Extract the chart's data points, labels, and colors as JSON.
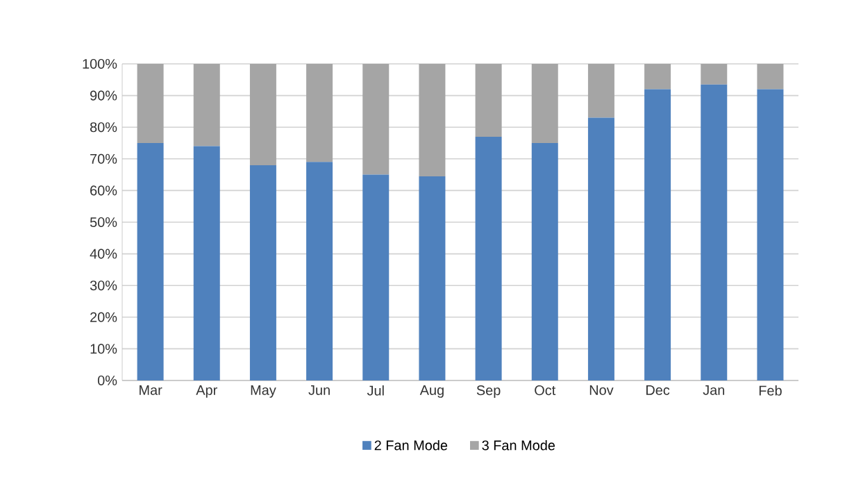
{
  "chart_data": {
    "type": "bar",
    "stacked": true,
    "categories": [
      "Mar",
      "Apr",
      "May",
      "Jun",
      "Jul",
      "Aug",
      "Sep",
      "Oct",
      "Nov",
      "Dec",
      "Jan",
      "Feb"
    ],
    "series": [
      {
        "name": "2 Fan Mode",
        "color": "#4f81bd",
        "values": [
          75,
          74,
          68,
          69,
          65,
          64.5,
          77,
          75,
          83,
          92,
          93.5,
          92
        ]
      },
      {
        "name": "3 Fan Mode",
        "color": "#a5a5a5",
        "values": [
          25,
          26,
          32,
          31,
          35,
          35.5,
          23,
          25,
          17,
          8,
          6.5,
          8
        ]
      }
    ],
    "ylim": [
      0,
      100
    ],
    "yticks": [
      {
        "value": 0,
        "label": "0%"
      },
      {
        "value": 10,
        "label": "10%"
      },
      {
        "value": 20,
        "label": "20%"
      },
      {
        "value": 30,
        "label": "30%"
      },
      {
        "value": 40,
        "label": "40%"
      },
      {
        "value": 50,
        "label": "50%"
      },
      {
        "value": 60,
        "label": "60%"
      },
      {
        "value": 70,
        "label": "70%"
      },
      {
        "value": 80,
        "label": "80%"
      },
      {
        "value": 90,
        "label": "90%"
      },
      {
        "value": 100,
        "label": "100%"
      }
    ],
    "grid": "y",
    "legend": "bottom"
  }
}
